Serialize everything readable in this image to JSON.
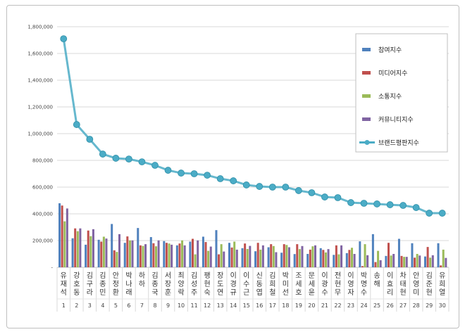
{
  "chart_data": {
    "type": "bar+line",
    "title": "",
    "xlabel": "",
    "ylabel": "",
    "ylim": [
      0,
      1800000
    ],
    "yticks": [
      "-",
      "200,000",
      "400,000",
      "600,000",
      "800,000",
      "1,000,000",
      "1,200,000",
      "1,400,000",
      "1,600,000",
      "1,800,000"
    ],
    "grid": true,
    "legend_position": "right",
    "categories": [
      "유재석",
      "강호동",
      "김구라",
      "김종민",
      "안정환",
      "박나래",
      "하하",
      "김종국",
      "서장훈",
      "최양락",
      "김성주",
      "팽현숙",
      "장도연",
      "이경규",
      "이수근",
      "신동엽",
      "김희철",
      "박미선",
      "조세호",
      "문세윤",
      "이광수",
      "전현무",
      "이영자",
      "박명수",
      "송해",
      "이효리",
      "차태현",
      "안영미",
      "김준현",
      "유희열"
    ],
    "index_labels": [
      "1",
      "2",
      "3",
      "4",
      "5",
      "6",
      "7",
      "8",
      "9",
      "10",
      "11",
      "12",
      "13",
      "14",
      "15",
      "16",
      "17",
      "18",
      "19",
      "20",
      "21",
      "22",
      "23",
      "24",
      "25",
      "26",
      "27",
      "28",
      "29",
      "30"
    ],
    "series": [
      {
        "name": "참여지수",
        "kind": "bar",
        "color": "#4F81BD",
        "values": [
          479000,
          217000,
          169000,
          206000,
          324000,
          183000,
          294000,
          226000,
          196000,
          164000,
          192000,
          229000,
          278000,
          183000,
          143000,
          120000,
          150000,
          109000,
          99000,
          100000,
          143000,
          93000,
          106000,
          194000,
          248000,
          85000,
          213000,
          180000,
          81000,
          180000
        ]
      },
      {
        "name": "미디어지수",
        "kind": "bar",
        "color": "#C0504D",
        "values": [
          462000,
          291000,
          275000,
          192000,
          127000,
          231000,
          164000,
          180000,
          183000,
          178000,
          213000,
          189000,
          97000,
          148000,
          178000,
          183000,
          173000,
          173000,
          173000,
          132000,
          130000,
          164000,
          130000,
          9000,
          39000,
          183000,
          85000,
          72000,
          152000,
          14000
        ]
      },
      {
        "name": "소통지수",
        "kind": "bar",
        "color": "#9BBB59",
        "values": [
          344000,
          270000,
          233000,
          229000,
          115000,
          201000,
          160000,
          157000,
          178000,
          201000,
          97000,
          123000,
          173000,
          192000,
          137000,
          132000,
          159000,
          167000,
          136000,
          157000,
          111000,
          97000,
          146000,
          173000,
          123000,
          88000,
          78000,
          100000,
          72000,
          132000
        ]
      },
      {
        "name": "커뮤니티지수",
        "kind": "bar",
        "color": "#8064A2",
        "values": [
          440000,
          291000,
          285000,
          215000,
          248000,
          201000,
          173000,
          201000,
          169000,
          164000,
          201000,
          155000,
          118000,
          132000,
          160000,
          164000,
          113000,
          150000,
          159000,
          164000,
          136000,
          164000,
          100000,
          90000,
          53000,
          100000,
          78000,
          88000,
          90000,
          70000
        ]
      },
      {
        "name": "브랜드평판지수",
        "kind": "line",
        "color": "#4BACC6",
        "values": [
          1710000,
          1068000,
          958000,
          847000,
          816000,
          810000,
          789000,
          763000,
          726000,
          705000,
          700000,
          689000,
          663000,
          647000,
          616000,
          605000,
          600000,
          600000,
          574000,
          558000,
          526000,
          521000,
          484000,
          479000,
          474000,
          468000,
          463000,
          447000,
          405000,
          405000
        ]
      }
    ]
  }
}
